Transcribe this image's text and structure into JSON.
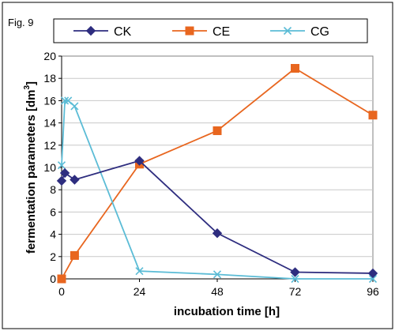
{
  "figure_label": "Fig. 9",
  "chart_data": {
    "type": "line",
    "title": "",
    "xlabel": "incubation time [h]",
    "ylabel_main": "fermentation parameters [dm",
    "ylabel_sup": "3",
    "ylabel_close": "]",
    "xlim": [
      0,
      96
    ],
    "ylim": [
      0,
      20
    ],
    "xticks": [
      0,
      24,
      48,
      72,
      96
    ],
    "yticks": [
      0,
      2,
      4,
      6,
      8,
      10,
      12,
      14,
      16,
      18,
      20
    ],
    "grid": "horizontal",
    "legend_position": "top",
    "series": [
      {
        "name": "CK",
        "color": "#2e2d7f",
        "marker": "diamond",
        "x": [
          0,
          1,
          4,
          24,
          48,
          72,
          96
        ],
        "y": [
          8.8,
          9.5,
          8.9,
          10.6,
          4.1,
          0.6,
          0.5
        ]
      },
      {
        "name": "CE",
        "color": "#e8661f",
        "marker": "square",
        "x": [
          0,
          4,
          24,
          48,
          72,
          96
        ],
        "y": [
          0.0,
          2.1,
          10.3,
          13.3,
          18.9,
          14.7
        ]
      },
      {
        "name": "CG",
        "color": "#5bbcd6",
        "marker": "x",
        "x": [
          0,
          1,
          2,
          4,
          24,
          48,
          72,
          96
        ],
        "y": [
          10.2,
          16.0,
          16.0,
          15.5,
          0.7,
          0.4,
          0.0,
          0.0
        ]
      }
    ]
  }
}
